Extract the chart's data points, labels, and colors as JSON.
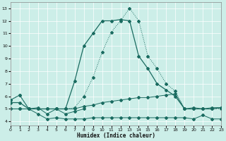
{
  "xlabel": "Humidex (Indice chaleur)",
  "bg_color": "#cceee8",
  "grid_color": "#ffffff",
  "line_color": "#1a6b60",
  "xlim": [
    0,
    23
  ],
  "ylim": [
    3.7,
    13.5
  ],
  "xticks": [
    0,
    1,
    2,
    3,
    4,
    5,
    6,
    7,
    8,
    9,
    10,
    11,
    12,
    13,
    14,
    15,
    16,
    17,
    18,
    19,
    20,
    21,
    22,
    23
  ],
  "yticks": [
    4,
    5,
    6,
    7,
    8,
    9,
    10,
    11,
    12,
    13
  ],
  "dotted_x": [
    0,
    1,
    2,
    3,
    4,
    5,
    6,
    7,
    8,
    9,
    10,
    11,
    12,
    13,
    14,
    15,
    16,
    17,
    18,
    19,
    20,
    21,
    22,
    23
  ],
  "dotted_y": [
    5.7,
    6.1,
    5.0,
    5.0,
    5.0,
    5.0,
    5.0,
    5.1,
    6.0,
    7.5,
    9.5,
    11.1,
    12.0,
    13.0,
    12.0,
    9.2,
    8.2,
    7.0,
    6.4,
    5.0,
    5.0,
    5.0,
    5.0,
    5.0
  ],
  "solid_x": [
    0,
    1,
    2,
    3,
    4,
    5,
    6,
    7,
    8,
    9,
    10,
    11,
    12,
    13,
    14,
    15,
    16,
    17,
    18,
    19,
    20,
    21,
    22,
    23
  ],
  "solid_y": [
    5.5,
    5.5,
    5.0,
    5.0,
    5.0,
    5.0,
    5.0,
    7.2,
    10.0,
    11.0,
    12.0,
    12.0,
    12.1,
    12.0,
    9.2,
    8.2,
    7.0,
    6.5,
    6.0,
    5.0,
    5.0,
    5.0,
    5.0,
    5.1
  ],
  "upper_x": [
    0,
    1,
    2,
    3,
    4,
    5,
    6,
    7,
    8,
    9,
    10,
    11,
    12,
    13,
    14,
    15,
    16,
    17,
    18,
    19,
    20,
    21,
    22,
    23
  ],
  "upper_y": [
    5.0,
    5.0,
    5.0,
    5.0,
    5.0,
    5.0,
    5.0,
    5.0,
    5.2,
    5.3,
    5.5,
    5.6,
    5.7,
    5.8,
    5.9,
    5.9,
    6.0,
    6.1,
    6.2,
    5.0,
    5.1,
    5.0,
    5.1,
    5.1
  ],
  "lower_x": [
    0,
    1,
    2,
    3,
    4,
    5,
    6,
    7,
    8,
    9,
    10,
    11,
    12,
    13,
    14,
    15,
    16,
    17,
    18,
    19,
    20,
    21,
    22,
    23
  ],
  "lower_y": [
    5.0,
    5.0,
    5.0,
    4.6,
    4.2,
    4.3,
    4.2,
    4.2,
    4.2,
    4.3,
    4.3,
    4.3,
    4.3,
    4.3,
    4.3,
    4.3,
    4.3,
    4.3,
    4.3,
    4.3,
    4.2,
    4.5,
    4.2,
    4.2
  ],
  "zigzag_x": [
    0,
    1,
    2,
    3,
    4,
    5,
    6,
    7,
    8
  ],
  "zigzag_y": [
    5.7,
    6.1,
    5.0,
    5.1,
    4.6,
    5.0,
    4.6,
    4.8,
    5.0
  ],
  "markersize": 2.0
}
